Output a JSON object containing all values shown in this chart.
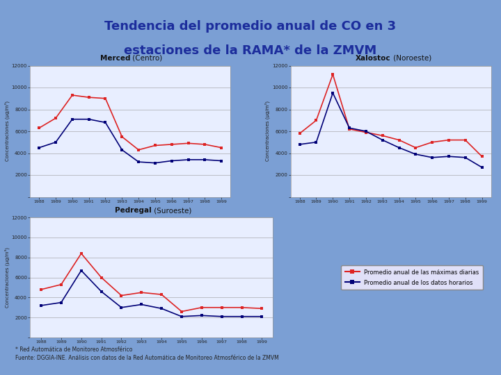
{
  "title_line1": "Tendencia del promedio anual de CO en 3",
  "title_line2": "estaciones de la RAMA* de la ZMVM",
  "bg_color": "#7B9FD4",
  "panel_bg": "#E8EEFF",
  "title_color": "#1C2D9C",
  "years": [
    "1988",
    "1989",
    "1990",
    "1991",
    "1992",
    "1993",
    "1994",
    "1995",
    "1996",
    "1997",
    "1998",
    "1999"
  ],
  "merced_title": "Merced",
  "merced_sub": " (Centro)",
  "xalostoc_title": "Xalostoc",
  "xalostoc_sub": " (Noroeste)",
  "pedregal_title": "Pedregal",
  "pedregal_sub": " (Suroeste)",
  "merced_max": [
    6300,
    7200,
    9300,
    9100,
    9000,
    5500,
    4300,
    4700,
    4800,
    4900,
    4800,
    4500
  ],
  "merced_hourly": [
    4500,
    5000,
    7100,
    7100,
    6800,
    4300,
    3200,
    3100,
    3300,
    3400,
    3400,
    3300
  ],
  "xalostoc_max": [
    5800,
    7000,
    11200,
    6200,
    5900,
    5600,
    5200,
    4500,
    5000,
    5200,
    5200,
    3700
  ],
  "xalostoc_hourly": [
    4800,
    5000,
    9500,
    6300,
    6000,
    5200,
    4500,
    3900,
    3600,
    3700,
    3600,
    2700
  ],
  "pedregal_max": [
    4800,
    5300,
    8400,
    6000,
    4200,
    4500,
    4300,
    2600,
    3000,
    3000,
    3000,
    2900
  ],
  "pedregal_hourly": [
    3200,
    3500,
    6700,
    4600,
    3000,
    3300,
    2900,
    2100,
    2200,
    2100,
    2100,
    2100
  ],
  "color_max": "#DD2222",
  "color_hourly": "#000077",
  "legend_max": "Promedio anual de las máximas diarias",
  "legend_hourly": "Promedio anual de los datos horarios",
  "ylabel": "Concentraciones (μg/m³)",
  "ylim": [
    0,
    12000
  ],
  "yticks": [
    0,
    2000,
    4000,
    6000,
    8000,
    10000,
    12000
  ],
  "footnote1": "* Red Automática de Monitoreo Atmosférico",
  "footnote2": "Fuente: DGGIA-INE. Análisis con datos de la Red Automática de Monitoreo Atmosférico de la ZMVM"
}
